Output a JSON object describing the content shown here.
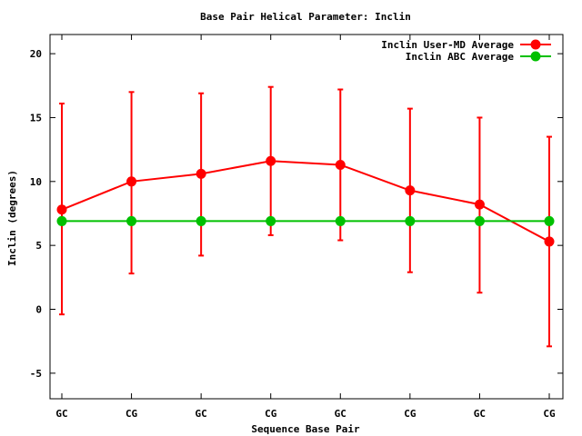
{
  "chart_data": {
    "type": "line",
    "title": "Base Pair Helical Parameter: Inclin",
    "xlabel": "Sequence Base Pair",
    "ylabel": "Inclin (degrees)",
    "categories": [
      "GC",
      "CG",
      "GC",
      "CG",
      "GC",
      "CG",
      "GC",
      "CG"
    ],
    "ylim": [
      -7,
      21.5
    ],
    "yticks": [
      -5,
      0,
      5,
      10,
      15,
      20
    ],
    "ytick_labels": [
      "-5",
      "0",
      "5",
      "10",
      "15",
      "20"
    ],
    "legend_position": "top-right",
    "grid": false,
    "series": [
      {
        "name": "Inclin User-MD Average",
        "color": "#ff0000",
        "marker": "circle",
        "values": [
          7.8,
          10.0,
          10.6,
          11.6,
          11.3,
          9.3,
          8.2,
          5.3
        ],
        "error_low": [
          -0.4,
          2.8,
          4.2,
          5.8,
          5.4,
          2.9,
          1.3,
          -2.9
        ],
        "error_high": [
          16.1,
          17.0,
          16.9,
          17.4,
          17.2,
          15.7,
          15.0,
          13.5
        ]
      },
      {
        "name": "Inclin ABC Average",
        "color": "#00c000",
        "marker": "circle",
        "values": [
          6.9,
          6.9,
          6.9,
          6.9,
          6.9,
          6.9,
          6.9,
          6.9
        ]
      }
    ]
  }
}
